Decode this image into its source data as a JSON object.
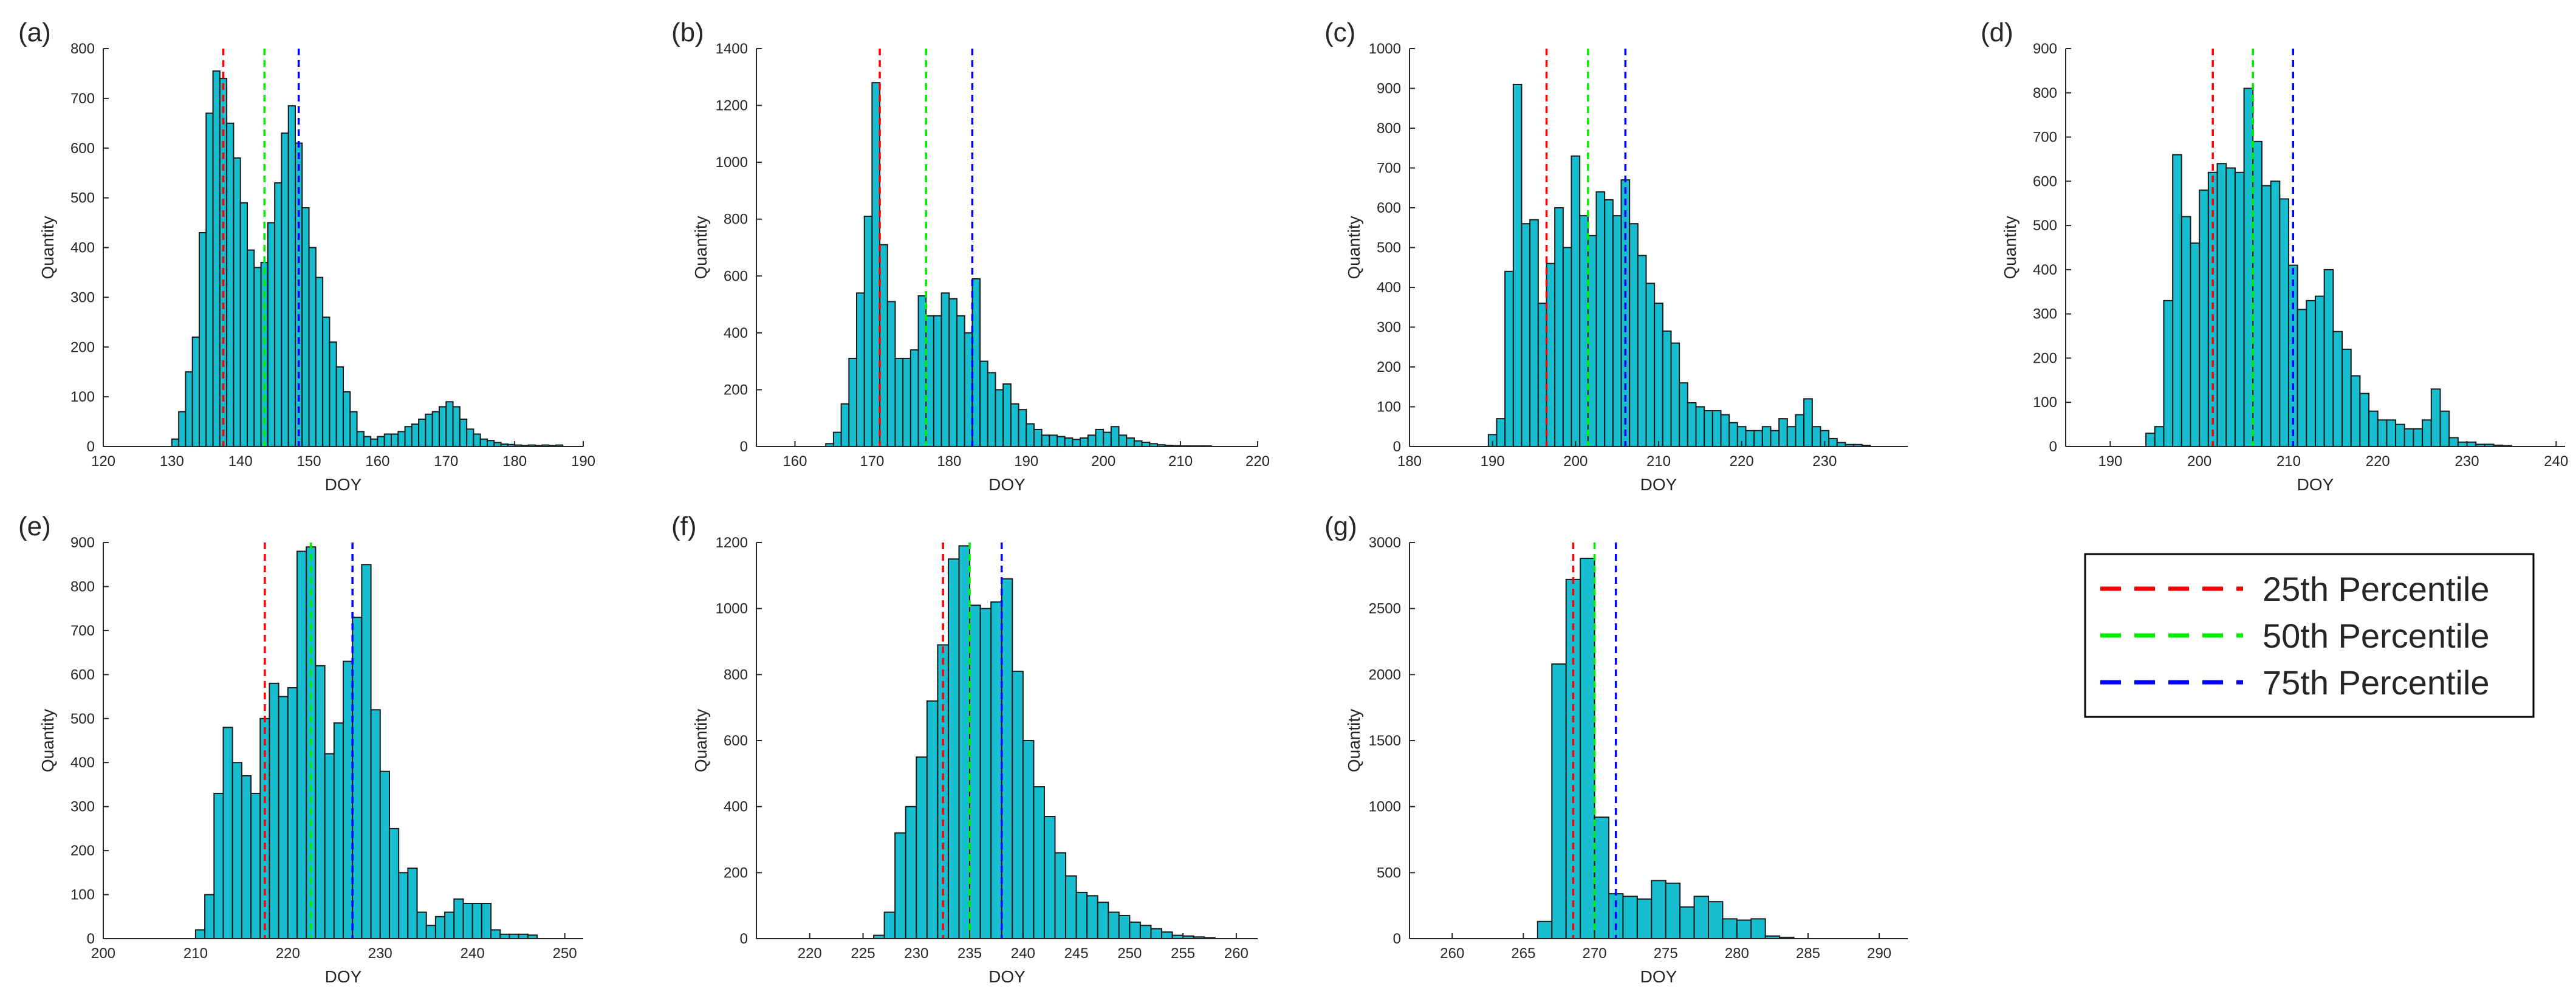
{
  "figure": {
    "bar_color": "#17becf",
    "bar_edge_color": "#1a1a1a",
    "percentile_colors": {
      "p25": "#ff0000",
      "p50": "#00ee00",
      "p75": "#0000ff"
    }
  },
  "legend": {
    "entries": [
      {
        "label": "25th Percentile",
        "color": "#ff0000"
      },
      {
        "label": "50th Percentile",
        "color": "#00ee00"
      },
      {
        "label": "75th Percentile",
        "color": "#0000ff"
      }
    ]
  },
  "chart_data": [
    {
      "panel": "(a)",
      "type": "bar",
      "xlabel": "DOY",
      "ylabel": "Quantity",
      "xlim": [
        120,
        190
      ],
      "ylim": [
        0,
        800
      ],
      "bin_width": 1,
      "xticks": [
        120,
        130,
        140,
        150,
        160,
        170,
        180,
        190
      ],
      "yticks": [
        0,
        100,
        200,
        300,
        400,
        500,
        600,
        700,
        800
      ],
      "percentiles": {
        "p25": 137.5,
        "p50": 143.5,
        "p75": 148.5
      },
      "bins_start": 130,
      "values": [
        15,
        70,
        150,
        220,
        430,
        670,
        755,
        740,
        650,
        580,
        490,
        395,
        360,
        370,
        450,
        530,
        630,
        685,
        610,
        480,
        400,
        340,
        260,
        210,
        160,
        110,
        70,
        30,
        20,
        15,
        20,
        25,
        25,
        30,
        40,
        45,
        55,
        65,
        70,
        80,
        90,
        80,
        55,
        35,
        25,
        15,
        12,
        8,
        5,
        4,
        3,
        2,
        3,
        2,
        3,
        2,
        3
      ]
    },
    {
      "panel": "(b)",
      "type": "bar",
      "xlabel": "DOY",
      "ylabel": "Quantity",
      "xlim": [
        155,
        220
      ],
      "ylim": [
        0,
        1400
      ],
      "bin_width": 1,
      "xticks": [
        160,
        170,
        180,
        190,
        200,
        210,
        220
      ],
      "yticks": [
        0,
        200,
        400,
        600,
        800,
        1000,
        1200,
        1400
      ],
      "percentiles": {
        "p25": 171,
        "p50": 177,
        "p75": 183
      },
      "bins_start": 164,
      "values": [
        10,
        50,
        150,
        310,
        540,
        810,
        1280,
        710,
        510,
        310,
        310,
        340,
        530,
        460,
        460,
        540,
        520,
        460,
        400,
        590,
        300,
        260,
        200,
        220,
        150,
        130,
        80,
        60,
        40,
        40,
        35,
        30,
        25,
        30,
        40,
        60,
        50,
        70,
        40,
        30,
        20,
        15,
        10,
        6,
        4,
        3,
        2,
        2,
        2,
        2
      ]
    },
    {
      "panel": "(c)",
      "type": "bar",
      "xlabel": "DOY",
      "ylabel": "Quantity",
      "xlim": [
        180,
        240
      ],
      "ylim": [
        0,
        1000
      ],
      "bin_width": 1,
      "xticks": [
        180,
        190,
        200,
        210,
        220,
        230
      ],
      "yticks": [
        0,
        100,
        200,
        300,
        400,
        500,
        600,
        700,
        800,
        900,
        1000
      ],
      "percentiles": {
        "p25": 196.5,
        "p50": 201.5,
        "p75": 206
      },
      "bins_start": 189.5,
      "values": [
        30,
        70,
        440,
        910,
        560,
        570,
        360,
        460,
        600,
        500,
        730,
        580,
        530,
        640,
        620,
        580,
        670,
        560,
        480,
        410,
        360,
        290,
        260,
        160,
        110,
        100,
        90,
        90,
        80,
        60,
        50,
        40,
        40,
        50,
        40,
        70,
        50,
        80,
        120,
        50,
        40,
        20,
        10,
        5,
        5,
        3
      ]
    },
    {
      "panel": "(d)",
      "type": "bar",
      "xlabel": "DOY",
      "ylabel": "Quantity",
      "xlim": [
        185,
        241
      ],
      "ylim": [
        0,
        900
      ],
      "bin_width": 1,
      "xticks": [
        190,
        200,
        210,
        220,
        230,
        240
      ],
      "yticks": [
        0,
        100,
        200,
        300,
        400,
        500,
        600,
        700,
        800,
        900
      ],
      "percentiles": {
        "p25": 201.5,
        "p50": 206,
        "p75": 210.5
      },
      "bins_start": 194,
      "values": [
        30,
        45,
        330,
        660,
        520,
        460,
        580,
        620,
        640,
        630,
        620,
        810,
        690,
        590,
        600,
        560,
        410,
        310,
        330,
        340,
        400,
        260,
        220,
        160,
        120,
        80,
        60,
        60,
        50,
        40,
        40,
        60,
        130,
        80,
        20,
        10,
        10,
        5,
        5,
        3,
        2
      ]
    },
    {
      "panel": "(e)",
      "type": "bar",
      "xlabel": "DOY",
      "ylabel": "Quantity",
      "xlim": [
        200,
        252
      ],
      "ylim": [
        0,
        900
      ],
      "bin_width": 1,
      "xticks": [
        200,
        210,
        220,
        230,
        240,
        250
      ],
      "yticks": [
        0,
        100,
        200,
        300,
        400,
        500,
        600,
        700,
        800,
        900
      ],
      "percentiles": {
        "p25": 217.5,
        "p50": 222.5,
        "p75": 227
      },
      "bins_start": 210,
      "values": [
        20,
        100,
        330,
        480,
        400,
        370,
        330,
        500,
        580,
        550,
        570,
        880,
        890,
        620,
        420,
        490,
        630,
        730,
        850,
        520,
        380,
        250,
        150,
        160,
        60,
        30,
        50,
        60,
        90,
        80,
        80,
        80,
        20,
        10,
        10,
        10,
        8
      ]
    },
    {
      "panel": "(f)",
      "type": "bar",
      "xlabel": "DOY",
      "ylabel": "Quantity",
      "xlim": [
        215,
        262
      ],
      "ylim": [
        0,
        1200
      ],
      "bin_width": 1,
      "xticks": [
        220,
        225,
        230,
        235,
        240,
        245,
        250,
        255,
        260
      ],
      "yticks": [
        0,
        200,
        400,
        600,
        800,
        1000,
        1200
      ],
      "percentiles": {
        "p25": 232.5,
        "p50": 235,
        "p75": 238
      },
      "bins_start": 226,
      "values": [
        10,
        80,
        320,
        400,
        550,
        720,
        890,
        1150,
        1190,
        1010,
        1000,
        1020,
        1090,
        810,
        600,
        460,
        370,
        260,
        190,
        140,
        130,
        110,
        80,
        70,
        50,
        40,
        30,
        20,
        10,
        8,
        5,
        3
      ]
    },
    {
      "panel": "(g)",
      "type": "bar",
      "xlabel": "DOY",
      "ylabel": "Quantity",
      "xlim": [
        257,
        292
      ],
      "ylim": [
        0,
        3000
      ],
      "bin_width": 1,
      "xticks": [
        260,
        265,
        270,
        275,
        280,
        285,
        290
      ],
      "yticks": [
        0,
        500,
        1000,
        1500,
        2000,
        2500,
        3000
      ],
      "percentiles": {
        "p25": 268.5,
        "p50": 270,
        "p75": 271.5
      },
      "bins_start": 266,
      "values": [
        130,
        2080,
        2720,
        2880,
        920,
        340,
        320,
        300,
        440,
        420,
        240,
        320,
        280,
        150,
        140,
        150,
        20,
        10
      ]
    }
  ]
}
